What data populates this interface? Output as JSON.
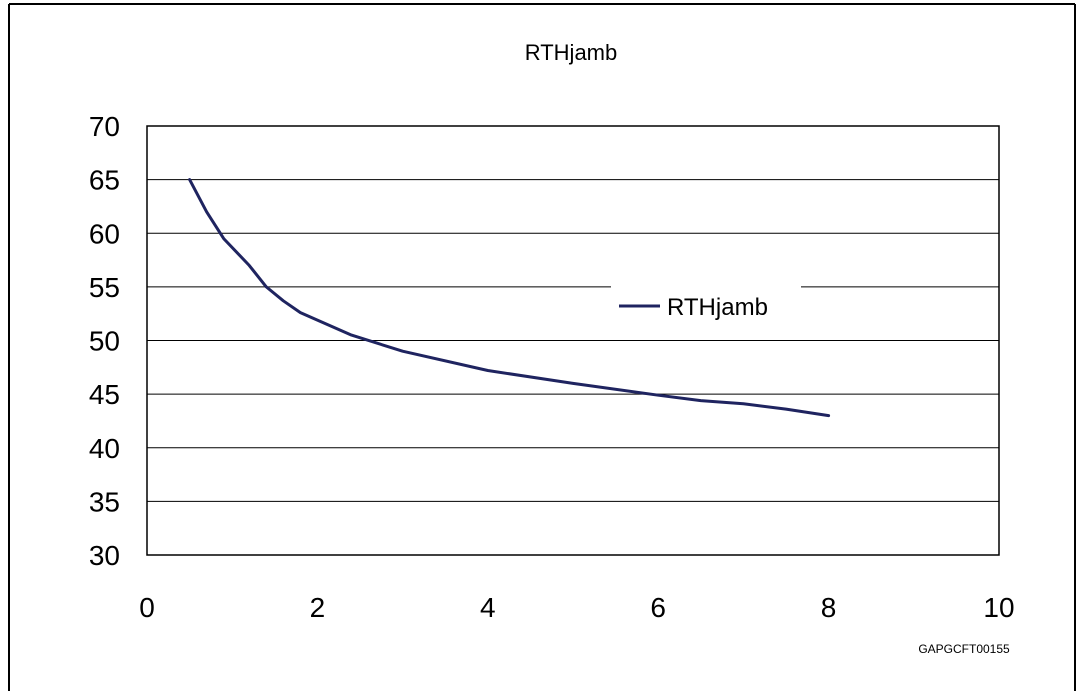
{
  "chart_data": {
    "type": "line",
    "title": "RTHjamb",
    "xlabel": "",
    "ylabel": "",
    "xlim": [
      0,
      10
    ],
    "ylim": [
      30,
      70
    ],
    "x_ticks": [
      0,
      2,
      4,
      6,
      8,
      10
    ],
    "y_ticks": [
      30,
      35,
      40,
      45,
      50,
      55,
      60,
      65,
      70
    ],
    "grid": "horizontal",
    "legend_position": "right",
    "series": [
      {
        "name": "RTHjamb",
        "color": "#1f2460",
        "x": [
          0.5,
          0.7,
          0.9,
          1.2,
          1.4,
          1.6,
          1.8,
          2.0,
          2.4,
          3.0,
          4.0,
          5.0,
          6.0,
          6.5,
          7.0,
          7.5,
          8.0
        ],
        "y": [
          65,
          62,
          59.5,
          57,
          55,
          53.7,
          52.6,
          51.9,
          50.5,
          49,
          47.2,
          46,
          44.9,
          44.4,
          44.1,
          43.6,
          43
        ]
      }
    ],
    "annotation": "GAPGCFT00155"
  }
}
